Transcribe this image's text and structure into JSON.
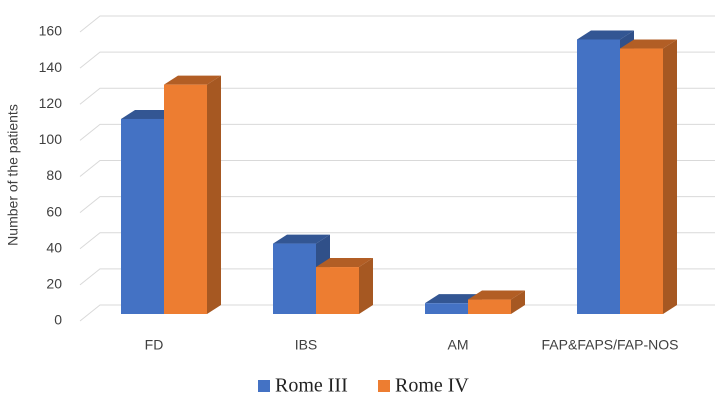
{
  "chart_data": {
    "type": "bar3d",
    "y_label": "Number of the patients",
    "categories": [
      "FD",
      "IBS",
      "AM",
      "FAP&FAPS/FAP-NOS"
    ],
    "series": [
      {
        "name": "Rome III",
        "color": "#4472c4",
        "values": [
          108,
          39,
          6,
          152
        ]
      },
      {
        "name": "Rome IV",
        "color": "#ed7d31",
        "values": [
          127,
          26,
          8,
          147
        ]
      }
    ],
    "ylim": [
      0,
      160
    ],
    "yticks": [
      0,
      20,
      40,
      60,
      80,
      100,
      120,
      140,
      160
    ],
    "grid": true
  }
}
